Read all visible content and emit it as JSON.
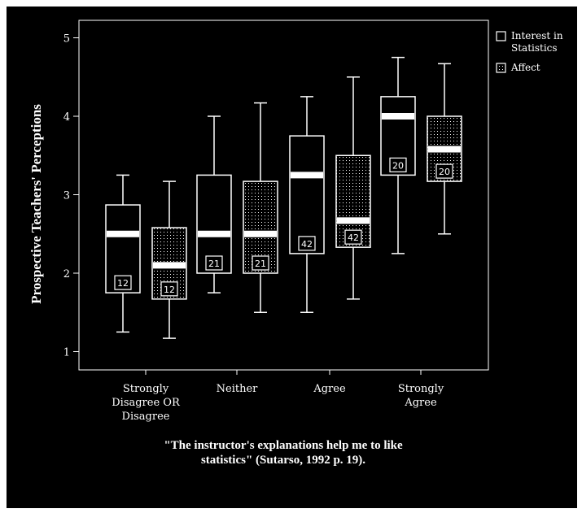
{
  "chart_data": {
    "type": "boxplot",
    "ylabel": "Prospective Teachers' Perceptions",
    "ylim": [
      0.8,
      5.4
    ],
    "yticks": [
      "1",
      "2",
      "3",
      "4",
      "5"
    ],
    "categories": [
      [
        "Strongly",
        "Disagree OR",
        "Disagree"
      ],
      [
        "Neither"
      ],
      [
        "Agree"
      ],
      [
        "Strongly",
        "Agree"
      ]
    ],
    "caption": [
      "\"The instructor's explanations help me to like",
      "statistics\" (Sutarso, 1992 p. 19)."
    ],
    "legend_position": "top-right",
    "series": [
      {
        "name": [
          "Interest in",
          "Statistics"
        ],
        "pattern": "hollow",
        "boxes": [
          {
            "min": 1.25,
            "q1": 1.75,
            "median": 2.5,
            "q3": 2.87,
            "max": 3.25,
            "n": "12"
          },
          {
            "min": 1.75,
            "q1": 2.0,
            "median": 2.5,
            "q3": 3.25,
            "max": 4.0,
            "n": "21"
          },
          {
            "min": 1.5,
            "q1": 2.25,
            "median": 3.25,
            "q3": 3.75,
            "max": 4.25,
            "n": "42"
          },
          {
            "min": 2.25,
            "q1": 3.25,
            "median": 4.0,
            "q3": 4.25,
            "max": 4.75,
            "n": "20"
          }
        ]
      },
      {
        "name": [
          "Affect"
        ],
        "pattern": "dotted",
        "boxes": [
          {
            "min": 1.17,
            "q1": 1.67,
            "median": 2.1,
            "q3": 2.58,
            "max": 3.17,
            "n": "12"
          },
          {
            "min": 1.5,
            "q1": 2.0,
            "median": 2.5,
            "q3": 3.17,
            "max": 4.17,
            "n": "21"
          },
          {
            "min": 1.67,
            "q1": 2.33,
            "median": 2.67,
            "q3": 3.5,
            "max": 4.5,
            "n": "42"
          },
          {
            "min": 2.5,
            "q1": 3.17,
            "median": 3.58,
            "q3": 4.0,
            "max": 4.67,
            "n": "20"
          }
        ]
      }
    ]
  }
}
